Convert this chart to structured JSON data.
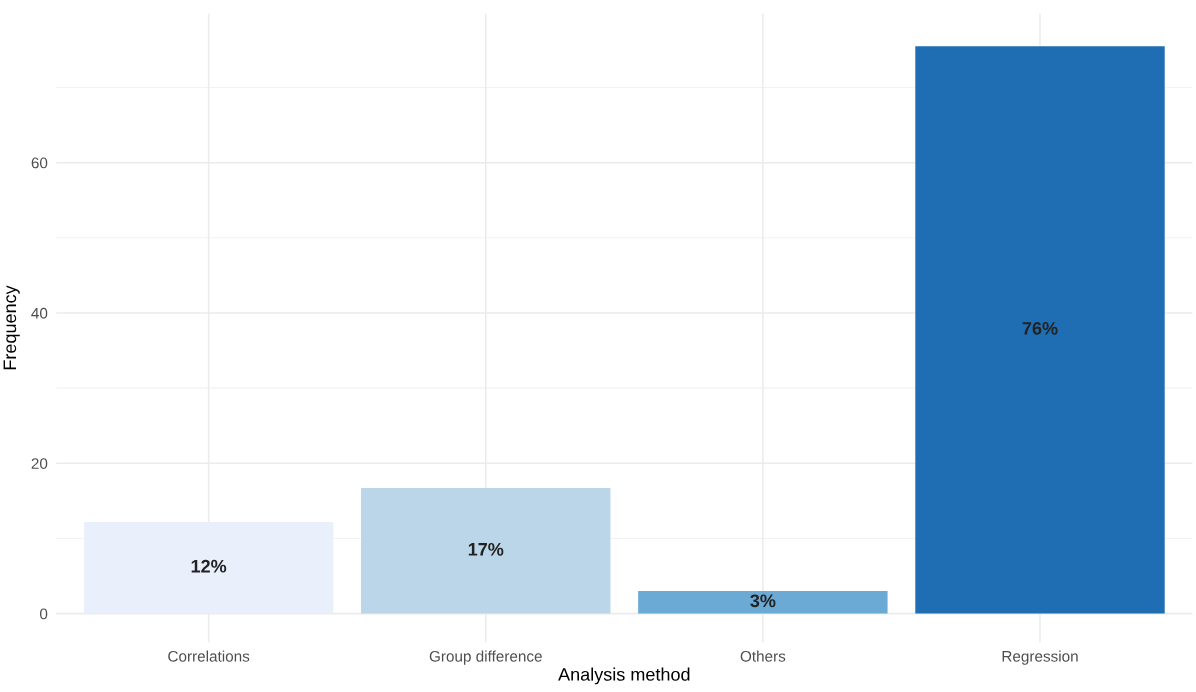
{
  "chart_data": {
    "type": "bar",
    "xlabel": "Analysis method",
    "ylabel": "Frequency",
    "categories": [
      "Correlations",
      "Group difference",
      "Others",
      "Regression"
    ],
    "values": [
      12.2,
      16.7,
      3,
      75.5
    ],
    "colors": [
      "#e9effb",
      "#bad6e8",
      "#6aaad5",
      "#1f6eb3"
    ],
    "value_labels": [
      "12%",
      "17%",
      "3%",
      "76%"
    ],
    "ylim": [
      -3.8,
      79.8
    ],
    "yticks": [
      0,
      20,
      40,
      60
    ],
    "grid": true
  }
}
